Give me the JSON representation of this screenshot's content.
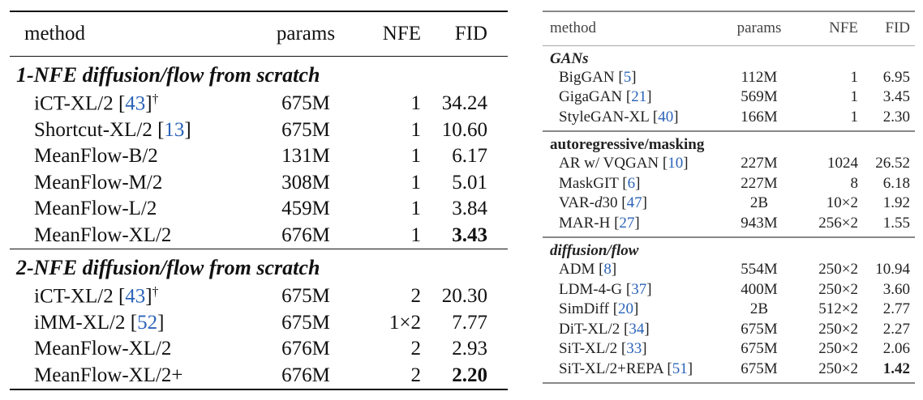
{
  "left_table": {
    "headers": {
      "method": "method",
      "params": "params",
      "nfe": "NFE",
      "fid": "FID"
    },
    "sections": [
      {
        "title": "1-NFE diffusion/flow from scratch",
        "rows": [
          {
            "method": "iCT-XL/2",
            "cite": "43",
            "dagger": "†",
            "params": "675M",
            "nfe": "1",
            "fid": "34.24"
          },
          {
            "method": "Shortcut-XL/2",
            "cite": "13",
            "dagger": "",
            "params": "675M",
            "nfe": "1",
            "fid": "10.60"
          },
          {
            "method": "MeanFlow-B/2",
            "cite": "",
            "dagger": "",
            "params": "131M",
            "nfe": "1",
            "fid": "6.17"
          },
          {
            "method": "MeanFlow-M/2",
            "cite": "",
            "dagger": "",
            "params": "308M",
            "nfe": "1",
            "fid": "5.01"
          },
          {
            "method": "MeanFlow-L/2",
            "cite": "",
            "dagger": "",
            "params": "459M",
            "nfe": "1",
            "fid": "3.84"
          },
          {
            "method": "MeanFlow-XL/2",
            "cite": "",
            "dagger": "",
            "params": "676M",
            "nfe": "1",
            "fid": "3.43",
            "bold": true
          }
        ]
      },
      {
        "title": "2-NFE diffusion/flow from scratch",
        "rows": [
          {
            "method": "iCT-XL/2",
            "cite": "43",
            "dagger": "†",
            "params": "675M",
            "nfe": "2",
            "fid": "20.30"
          },
          {
            "method": "iMM-XL/2",
            "cite": "52",
            "dagger": "",
            "params": "675M",
            "nfe": "1×2",
            "fid": "7.77"
          },
          {
            "method": "MeanFlow-XL/2",
            "cite": "",
            "dagger": "",
            "params": "676M",
            "nfe": "2",
            "fid": "2.93"
          },
          {
            "method": "MeanFlow-XL/2+",
            "cite": "",
            "dagger": "",
            "params": "676M",
            "nfe": "2",
            "fid": "2.20",
            "bold": true
          }
        ]
      }
    ]
  },
  "right_table": {
    "headers": {
      "method": "method",
      "params": "params",
      "nfe": "NFE",
      "fid": "FID"
    },
    "sections": [
      {
        "title": "GANs",
        "style": "it",
        "rows": [
          {
            "method": "BigGAN",
            "cite": "5",
            "params": "112M",
            "nfe": "1",
            "fid": "6.95"
          },
          {
            "method": "GigaGAN",
            "cite": "21",
            "params": "569M",
            "nfe": "1",
            "fid": "3.45"
          },
          {
            "method": "StyleGAN-XL",
            "cite": "40",
            "params": "166M",
            "nfe": "1",
            "fid": "2.30"
          }
        ]
      },
      {
        "title": "autoregressive/masking",
        "style": "bd",
        "rows": [
          {
            "method": "AR w/ VQGAN",
            "cite": "10",
            "params": "227M",
            "nfe": "1024",
            "fid": "26.52"
          },
          {
            "method": "MaskGIT",
            "cite": "6",
            "params": "227M",
            "nfe": "8",
            "fid": "6.18"
          },
          {
            "method": "VAR-",
            "method_it": "d",
            "method_tail": "30",
            "cite": "47",
            "params": "2B",
            "nfe": "10×2",
            "fid": "1.92"
          },
          {
            "method": "MAR-H",
            "cite": "27",
            "params": "943M",
            "nfe": "256×2",
            "fid": "1.55"
          }
        ]
      },
      {
        "title": "diffusion/flow",
        "style": "it",
        "rows": [
          {
            "method": "ADM",
            "cite": "8",
            "params": "554M",
            "nfe": "250×2",
            "fid": "10.94"
          },
          {
            "method": "LDM-4-G",
            "cite": "37",
            "params": "400M",
            "nfe": "250×2",
            "fid": "3.60"
          },
          {
            "method": "SimDiff",
            "cite": "20",
            "params": "2B",
            "nfe": "512×2",
            "fid": "2.77"
          },
          {
            "method": "DiT-XL/2",
            "cite": "34",
            "params": "675M",
            "nfe": "250×2",
            "fid": "2.27"
          },
          {
            "method": "SiT-XL/2",
            "cite": "33",
            "params": "675M",
            "nfe": "250×2",
            "fid": "2.06"
          },
          {
            "method": "SiT-XL/2+REPA",
            "cite": "51",
            "params": "675M",
            "nfe": "250×2",
            "fid": "1.42",
            "bold": true
          }
        ]
      }
    ]
  }
}
